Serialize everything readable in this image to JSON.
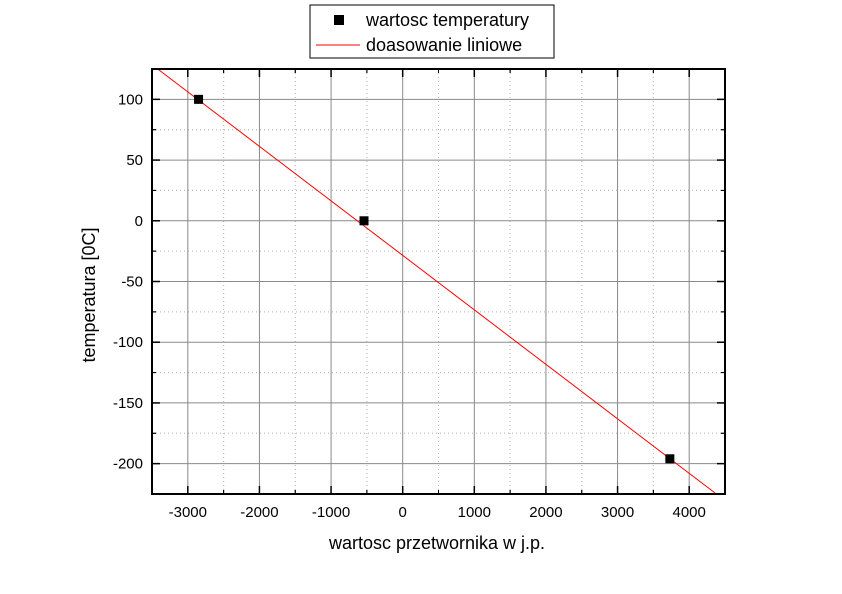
{
  "chart_data": {
    "type": "scatter",
    "xlabel": "wartosc przetwornika w j.p.",
    "ylabel": "temperatura [0C]",
    "xlim": [
      -3500,
      4500
    ],
    "ylim": [
      -225,
      125
    ],
    "xticks": [
      -3000,
      -2000,
      -1000,
      0,
      1000,
      2000,
      3000,
      4000
    ],
    "yticks": [
      100,
      50,
      0,
      -50,
      -100,
      -150,
      -200
    ],
    "grid": true,
    "legend_position": "top-center",
    "series": [
      {
        "name": "wartosc temperatury",
        "kind": "markers",
        "marker": "square",
        "color": "#000000",
        "x": [
          -2850,
          -540,
          3730
        ],
        "y": [
          100,
          0,
          -196
        ]
      },
      {
        "name": "doasowanie liniowe",
        "kind": "line",
        "color": "#ff0000",
        "x": [
          -3420,
          4380
        ],
        "y": [
          125,
          -225
        ]
      }
    ]
  }
}
